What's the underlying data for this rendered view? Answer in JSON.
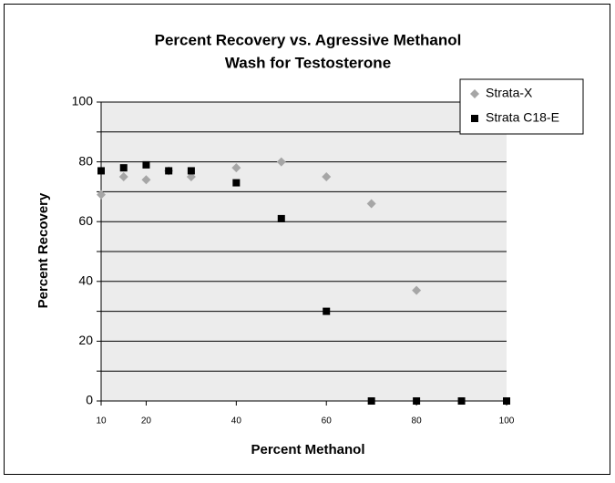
{
  "chart_data": {
    "type": "scatter",
    "title": [
      "Percent Recovery vs. Agressive Methanol",
      "Wash for Testosterone"
    ],
    "x_label": "Percent Methanol",
    "y_label": "Percent Recovery",
    "xlim": [
      10,
      100
    ],
    "ylim": [
      0,
      100
    ],
    "xticks": [
      10,
      20,
      40,
      60,
      80,
      100
    ],
    "yticks": [
      0,
      20,
      40,
      60,
      80,
      100
    ],
    "ygrid": [
      0,
      10,
      20,
      30,
      40,
      50,
      60,
      70,
      80,
      90,
      100
    ],
    "plot_background": "#ececec",
    "legend": "top-right",
    "series": [
      {
        "name": "Strata-X",
        "color": "#a6a6a6",
        "marker": "diamond",
        "x": [
          10,
          15,
          20,
          25,
          30,
          40,
          50,
          60,
          70,
          80
        ],
        "values": [
          69,
          75,
          74,
          77,
          75,
          78,
          80,
          75,
          66,
          37
        ]
      },
      {
        "name": "Strata C18-E",
        "color": "#000000",
        "marker": "square",
        "x": [
          10,
          15,
          20,
          25,
          30,
          40,
          50,
          60,
          70,
          80,
          90,
          100
        ],
        "values": [
          77,
          78,
          79,
          77,
          77,
          73,
          61,
          30,
          0,
          0,
          0,
          0
        ]
      }
    ]
  }
}
